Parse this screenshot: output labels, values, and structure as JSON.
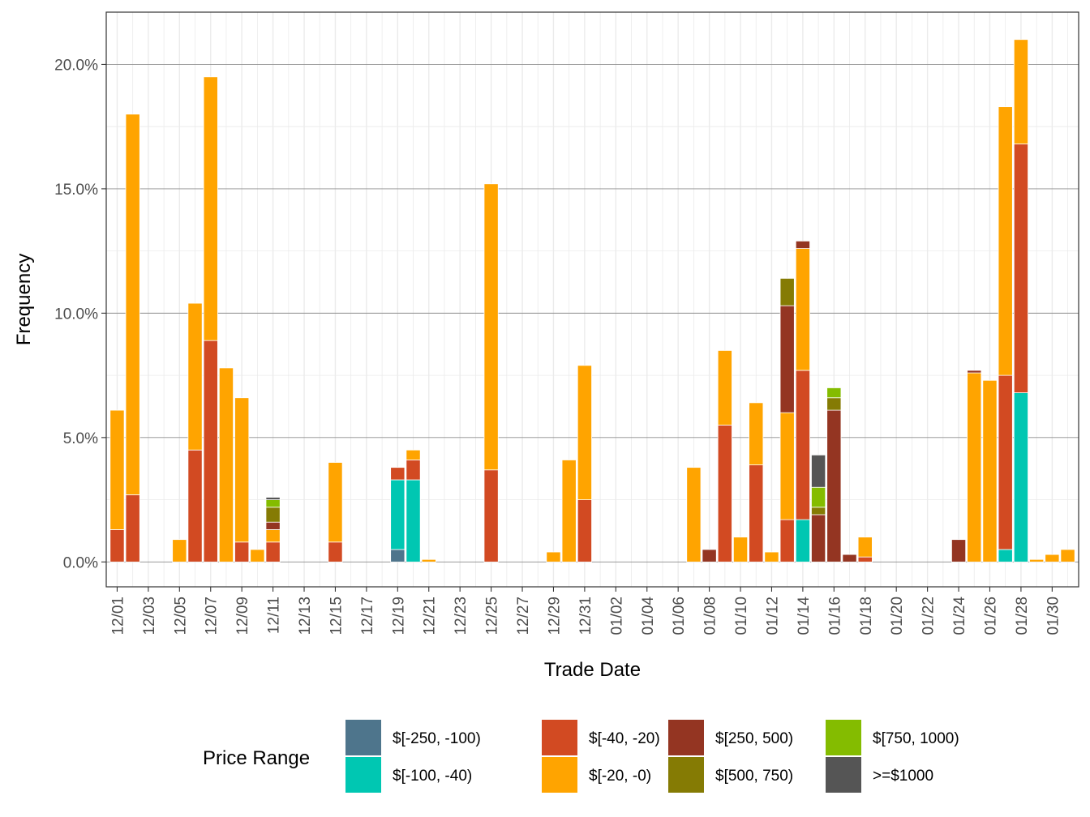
{
  "chart_data": {
    "type": "bar",
    "stacked": true,
    "xlabel": "Trade Date",
    "ylabel": "Frequency",
    "ylim": [
      -0.01,
      0.221
    ],
    "yticks": [
      0.0,
      0.05,
      0.1,
      0.15,
      0.2
    ],
    "ytick_labels": [
      "0.0%",
      "5.0%",
      "10.0%",
      "15.0%",
      "20.0%"
    ],
    "grid": true,
    "legend_title": "Price Range",
    "legend_position": "bottom",
    "categories": [
      "12/01",
      "12/02",
      "12/03",
      "12/04",
      "12/05",
      "12/06",
      "12/07",
      "12/08",
      "12/09",
      "12/10",
      "12/11",
      "12/12",
      "12/13",
      "12/14",
      "12/15",
      "12/16",
      "12/17",
      "12/18",
      "12/19",
      "12/20",
      "12/21",
      "12/22",
      "12/23",
      "12/24",
      "12/25",
      "12/26",
      "12/27",
      "12/28",
      "12/29",
      "12/30",
      "12/31",
      "01/01",
      "01/02",
      "01/03",
      "01/04",
      "01/05",
      "01/06",
      "01/07",
      "01/08",
      "01/09",
      "01/10",
      "01/11",
      "01/12",
      "01/13",
      "01/14",
      "01/15",
      "01/16",
      "01/17",
      "01/18",
      "01/19",
      "01/20",
      "01/21",
      "01/22",
      "01/23",
      "01/24",
      "01/25",
      "01/26",
      "01/27",
      "01/28",
      "01/29",
      "01/30",
      "01/31"
    ],
    "xtick_labels": [
      "12/01",
      "12/03",
      "12/05",
      "12/07",
      "12/09",
      "12/11",
      "12/13",
      "12/15",
      "12/17",
      "12/19",
      "12/21",
      "12/23",
      "12/25",
      "12/27",
      "12/29",
      "12/31",
      "01/02",
      "01/04",
      "01/06",
      "01/08",
      "01/10",
      "01/12",
      "01/14",
      "01/16",
      "01/18",
      "01/20",
      "01/22",
      "01/24",
      "01/26",
      "01/28",
      "01/30"
    ],
    "series": [
      {
        "name": "$[-250, -100)",
        "color": "#4E758C",
        "values": {
          "12/19": 0.005
        }
      },
      {
        "name": "$[-100, -40)",
        "color": "#00C7B2",
        "values": {
          "12/19": 0.028,
          "12/20": 0.033,
          "01/14": 0.017,
          "01/27": 0.005,
          "01/28": 0.068
        }
      },
      {
        "name": "$[-40, -20)",
        "color": "#D24A22",
        "values": {
          "12/01": 0.013,
          "12/02": 0.027,
          "12/06": 0.045,
          "12/07": 0.089,
          "12/09": 0.008,
          "12/11": 0.008,
          "12/15": 0.008,
          "12/19": 0.005,
          "12/20": 0.008,
          "12/25": 0.037,
          "12/31": 0.025,
          "01/09": 0.055,
          "01/11": 0.039,
          "01/13": 0.017,
          "01/14": 0.06,
          "01/18": 0.002,
          "01/27": 0.07,
          "01/28": 0.1
        }
      },
      {
        "name": "$[-20, -0)",
        "color": "#FFA400",
        "values": {
          "12/01": 0.048,
          "12/02": 0.153,
          "12/05": 0.009,
          "12/06": 0.059,
          "12/07": 0.106,
          "12/08": 0.078,
          "12/09": 0.058,
          "12/10": 0.005,
          "12/11": 0.005,
          "12/15": 0.032,
          "12/20": 0.004,
          "12/21": 0.001,
          "12/25": 0.115,
          "12/29": 0.004,
          "12/30": 0.041,
          "12/31": 0.054,
          "01/07": 0.038,
          "01/09": 0.03,
          "01/10": 0.01,
          "01/11": 0.025,
          "01/12": 0.004,
          "01/13": 0.043,
          "01/14": 0.049,
          "01/18": 0.008,
          "01/25": 0.076,
          "01/26": 0.073,
          "01/27": 0.108,
          "01/28": 0.042,
          "01/29": 0.001,
          "01/30": 0.003,
          "01/31": 0.005
        }
      },
      {
        "name": "$[250, 500)",
        "color": "#943522",
        "values": {
          "12/11": 0.003,
          "01/08": 0.005,
          "01/13": 0.043,
          "01/14": 0.003,
          "01/15": 0.019,
          "01/16": 0.061,
          "01/17": 0.003,
          "01/24": 0.009,
          "01/25": 0.001
        }
      },
      {
        "name": "$[500, 750)",
        "color": "#857B04",
        "values": {
          "12/11": 0.006,
          "01/13": 0.011,
          "01/15": 0.003,
          "01/16": 0.005
        }
      },
      {
        "name": "$[750, 1000)",
        "color": "#84BC00",
        "values": {
          "12/11": 0.003,
          "01/15": 0.008,
          "01/16": 0.004
        }
      },
      {
        "name": ">=$1000",
        "color": "#555555",
        "values": {
          "12/11": 0.001,
          "01/15": 0.013
        }
      }
    ],
    "stack_order": [
      "$[-250, -100)",
      "$[-100, -40)",
      "$[-40, -20)",
      "$[-20, -0)",
      "$[250, 500)",
      "$[500, 750)",
      "$[750, 1000)",
      ">=$1000"
    ],
    "legend_columns": [
      [
        "$[-250, -100)",
        "$[-100, -40)"
      ],
      [
        "$[-40, -20)",
        "$[-20, -0)"
      ],
      [
        "$[250, 500)",
        "$[500, 750)"
      ],
      [
        "$[750, 1000)",
        ">=$1000"
      ]
    ]
  }
}
